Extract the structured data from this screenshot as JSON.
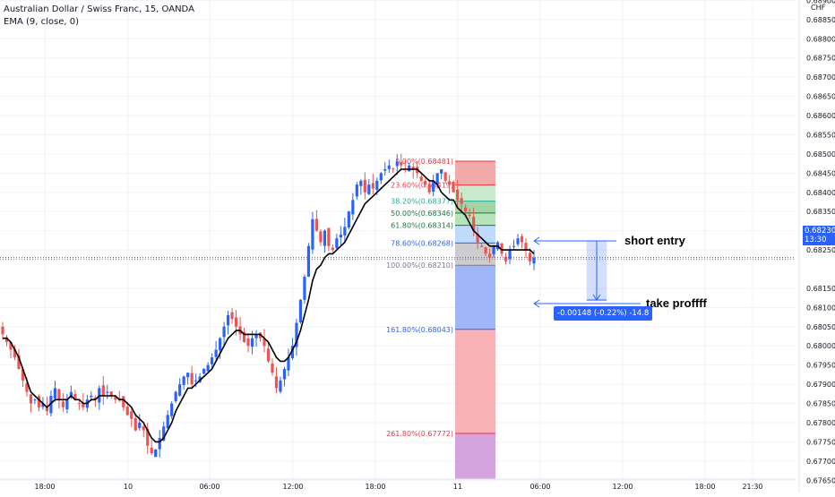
{
  "header": {
    "title": "Australian Dollar / Swiss Franc, 15, OANDA",
    "indicator": "EMA (9, close, 0)",
    "currency": "CHF"
  },
  "chart_data": {
    "type": "candlestick",
    "grid": true,
    "ylim": [
      0.67625,
      0.68901
    ],
    "y_ticks": [
      "0.68900",
      "0.68850",
      "0.68800",
      "0.68750",
      "0.68700",
      "0.68650",
      "0.68600",
      "0.68550",
      "0.68500",
      "0.68450",
      "0.68400",
      "0.68350",
      "0.68300",
      "0.68250",
      "0.68150",
      "0.68100",
      "0.68050",
      "0.68000",
      "0.67950",
      "0.67900",
      "0.67850",
      "0.67800",
      "0.67750",
      "0.67700",
      "0.67650"
    ],
    "x_labels": [
      "18:00",
      "10",
      "06:00",
      "12:00",
      "18:00",
      "11",
      "06:00",
      "12:00",
      "18:00",
      "21:30"
    ],
    "current_price": "0.68230",
    "countdown": "13:30",
    "close_path": [
      0.6803,
      0.6801,
      0.6799,
      0.6797,
      0.6794,
      0.6791,
      0.6788,
      0.6785,
      0.6786,
      0.6784,
      0.6785,
      0.6783,
      0.6787,
      0.6789,
      0.6786,
      0.6784,
      0.6786,
      0.6788,
      0.6786,
      0.6785,
      0.6784,
      0.6786,
      0.6787,
      0.6786,
      0.6789,
      0.6787,
      0.6788,
      0.6787,
      0.6786,
      0.6786,
      0.6784,
      0.6782,
      0.6781,
      0.6778,
      0.678,
      0.6778,
      0.6774,
      0.6772,
      0.6773,
      0.6776,
      0.6779,
      0.6782,
      0.6785,
      0.6788,
      0.679,
      0.6792,
      0.6793,
      0.679,
      0.6791,
      0.6792,
      0.6794,
      0.6795,
      0.6797,
      0.6799,
      0.6802,
      0.6805,
      0.6808,
      0.6807,
      0.6805,
      0.6803,
      0.6801,
      0.68,
      0.6802,
      0.6803,
      0.6802,
      0.68,
      0.6796,
      0.6793,
      0.6789,
      0.6791,
      0.6794,
      0.6797,
      0.68,
      0.6806,
      0.6812,
      0.6818,
      0.6826,
      0.6833,
      0.683,
      0.6827,
      0.683,
      0.6826,
      0.6825,
      0.6828,
      0.6829,
      0.6831,
      0.6835,
      0.6838,
      0.6842,
      0.6843,
      0.684,
      0.6842,
      0.6841,
      0.6843,
      0.6845,
      0.6846,
      0.6847,
      0.6846,
      0.6848,
      0.6847,
      0.6846,
      0.6847,
      0.6846,
      0.6845,
      0.6843,
      0.6842,
      0.684,
      0.6843,
      0.6845,
      0.6846,
      0.6843,
      0.6842,
      0.684,
      0.6838,
      0.6837,
      0.6835,
      0.6834,
      0.683,
      0.6827,
      0.6826,
      0.6824,
      0.6823,
      0.6826,
      0.6827,
      0.6824,
      0.6822,
      0.6825,
      0.6826,
      0.6828,
      0.6827,
      0.6825,
      0.6822,
      0.6823
    ],
    "ema_path": [
      0.6802,
      0.6802,
      0.6801,
      0.6799,
      0.6797,
      0.6794,
      0.6791,
      0.6788,
      0.6787,
      0.6786,
      0.6785,
      0.6784,
      0.6785,
      0.6786,
      0.6786,
      0.6786,
      0.6786,
      0.6787,
      0.6786,
      0.6786,
      0.6785,
      0.6785,
      0.6786,
      0.6786,
      0.6787,
      0.6787,
      0.6787,
      0.6787,
      0.6787,
      0.6786,
      0.6786,
      0.6785,
      0.6784,
      0.6782,
      0.6781,
      0.678,
      0.6778,
      0.6776,
      0.6775,
      0.6775,
      0.6776,
      0.6778,
      0.678,
      0.6783,
      0.6785,
      0.6787,
      0.6789,
      0.6789,
      0.679,
      0.6791,
      0.6792,
      0.6793,
      0.6794,
      0.6796,
      0.6798,
      0.68,
      0.6802,
      0.6803,
      0.6804,
      0.6804,
      0.6803,
      0.6803,
      0.6803,
      0.6803,
      0.6803,
      0.6802,
      0.6801,
      0.6799,
      0.6797,
      0.6796,
      0.6796,
      0.6797,
      0.6799,
      0.6801,
      0.6804,
      0.6808,
      0.6812,
      0.6817,
      0.682,
      0.6821,
      0.6823,
      0.6824,
      0.6824,
      0.6825,
      0.6826,
      0.6827,
      0.6829,
      0.6831,
      0.6833,
      0.6835,
      0.6837,
      0.6838,
      0.6839,
      0.684,
      0.6841,
      0.6842,
      0.6843,
      0.6844,
      0.6845,
      0.6846,
      0.6846,
      0.6846,
      0.6846,
      0.6846,
      0.6845,
      0.6844,
      0.6843,
      0.6843,
      0.6842,
      0.684,
      0.6839,
      0.6838,
      0.6838,
      0.6836,
      0.6835,
      0.6834,
      0.6832,
      0.683,
      0.6829,
      0.6828,
      0.6827,
      0.6826,
      0.6826,
      0.6826,
      0.6825,
      0.6825,
      0.6825,
      0.6825,
      0.6825,
      0.6825,
      0.6825,
      0.6825,
      0.6824
    ]
  },
  "fib": {
    "levels": [
      {
        "label": "0.00%(0.68481)",
        "price": 0.68481,
        "text_color": "#f23645"
      },
      {
        "label": "23.60%(0.68419)",
        "price": 0.68419,
        "text_color": "#f23645"
      },
      {
        "label": "38.20%(0.68377)",
        "price": 0.68377,
        "text_color": "#22ab94"
      },
      {
        "label": "50.00%(0.68346)",
        "price": 0.68346,
        "text_color": "#1b7a3a"
      },
      {
        "label": "61.80%(0.68314)",
        "price": 0.68314,
        "text_color": "#1b7a3a"
      },
      {
        "label": "78.60%(0.68268)",
        "price": 0.68268,
        "text_color": "#2962ff"
      },
      {
        "label": "100.00%(0.68210)",
        "price": 0.6821,
        "text_color": "#787b86"
      },
      {
        "label": "161.80%(0.68043)",
        "price": 0.68043,
        "text_color": "#2962ff"
      },
      {
        "label": "261.80%(0.67772)",
        "price": 0.67772,
        "text_color": "#f23645"
      }
    ],
    "zone_colors": [
      "#f7a5a8",
      "#a8d8b0",
      "#bfe6c3",
      "#8fcf96",
      "#a7e0ac",
      "#b3d4fc",
      "#c4c4c8",
      "#8fa9f5",
      "#f7a5a8",
      "#ce93d8"
    ]
  },
  "annotations": {
    "short_entry": "short entry",
    "take_profit": "take proffff",
    "measure": "-0.00148 (-0.22%) -14.8"
  },
  "colors": {
    "up": "#2962ff",
    "down": "#ef5350",
    "ema": "#000000",
    "grid": "#f0f3fa",
    "short_entry_text": "#f23645",
    "take_profit_text": "#4caf50"
  }
}
